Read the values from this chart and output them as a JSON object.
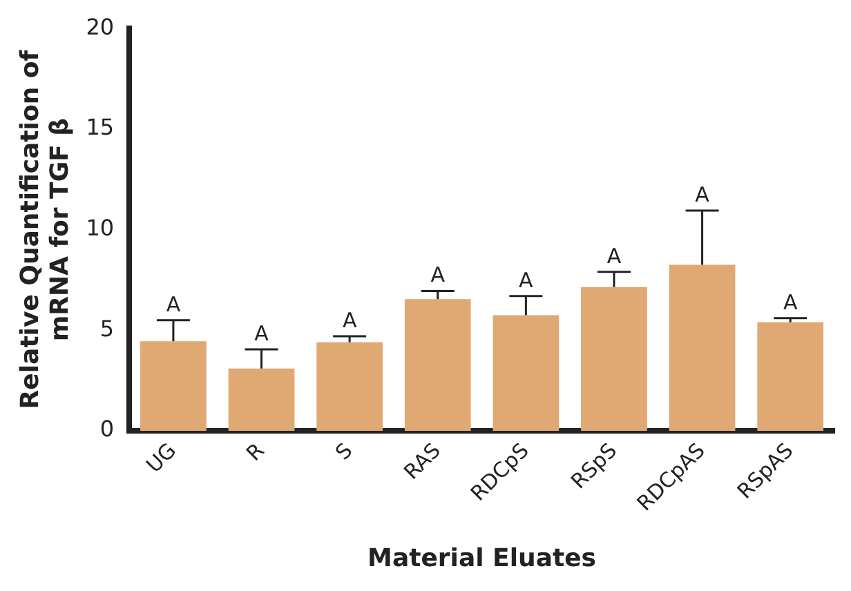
{
  "chart_data": {
    "type": "bar",
    "xlabel": "Material Eluates",
    "ylabel": "Relative Quantification of\nmRNA for TGF β",
    "categories": [
      "UG",
      "R",
      "S",
      "RAS",
      "RDCpS",
      "RSpS",
      "RDCpAS",
      "RSpAS"
    ],
    "values": [
      4.45,
      3.1,
      4.4,
      6.55,
      5.75,
      7.15,
      8.25,
      5.4
    ],
    "errors": [
      [
        4.45,
        5.5
      ],
      [
        3.1,
        4.05
      ],
      [
        4.4,
        4.7
      ],
      [
        6.55,
        6.95
      ],
      [
        5.75,
        6.7
      ],
      [
        7.15,
        7.9
      ],
      [
        8.25,
        10.95
      ],
      [
        5.4,
        5.6
      ]
    ],
    "color": "#e0a974",
    "ylim": [
      0,
      20
    ],
    "yticks": [
      0,
      5,
      10,
      15,
      20
    ],
    "grid": false,
    "legend": false,
    "annotations": [
      {
        "text": "A",
        "x": "UG",
        "y": 5.5
      },
      {
        "text": "A",
        "x": "R",
        "y": 4.05
      },
      {
        "text": "A",
        "x": "S",
        "y": 4.7
      },
      {
        "text": "A",
        "x": "RAS",
        "y": 6.95
      },
      {
        "text": "A",
        "x": "RDCpS",
        "y": 6.7
      },
      {
        "text": "A",
        "x": "RSpS",
        "y": 7.9
      },
      {
        "text": "A",
        "x": "RDCpAS",
        "y": 10.95
      },
      {
        "text": "A",
        "x": "RSpAS",
        "y": 5.6
      }
    ]
  }
}
